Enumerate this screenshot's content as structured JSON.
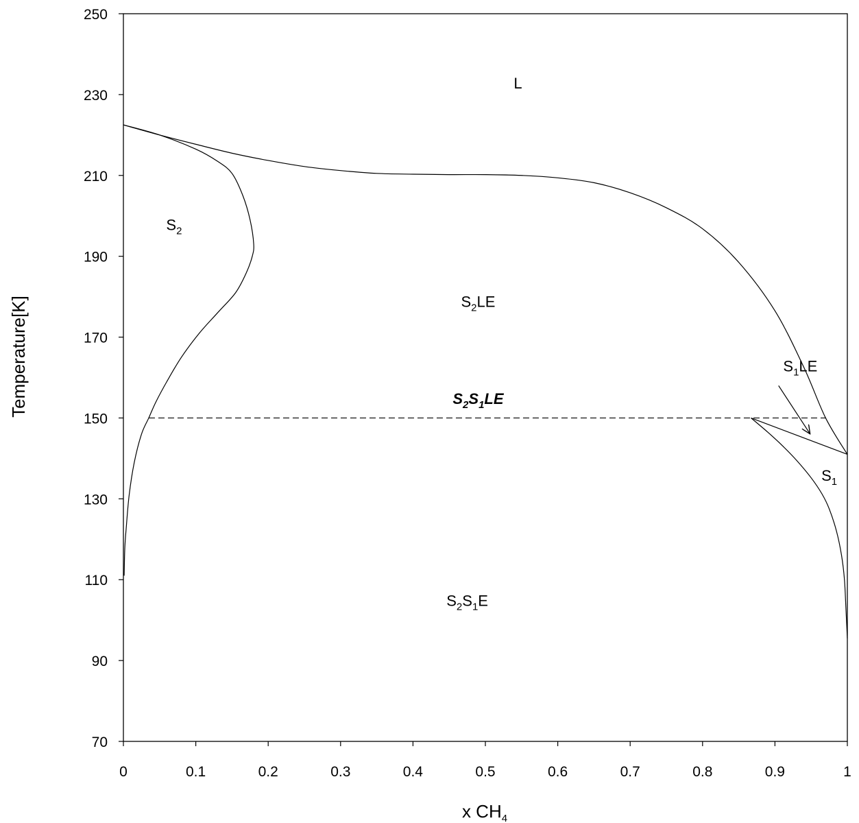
{
  "chart_data": {
    "type": "line",
    "title": "",
    "xlabel": "x CH",
    "xlabel_sub": "4",
    "ylabel": "Temperature[K]",
    "xlim": [
      0,
      1
    ],
    "ylim": [
      70,
      250
    ],
    "x_ticks": [
      "0",
      "0.1",
      "0.2",
      "0.3",
      "0.4",
      "0.5",
      "0.6",
      "0.7",
      "0.8",
      "0.9",
      "1"
    ],
    "y_ticks": [
      "70",
      "90",
      "110",
      "130",
      "150",
      "170",
      "190",
      "210",
      "230",
      "250"
    ],
    "grid": false,
    "legend": "none",
    "series": [
      {
        "id": "liquidus",
        "style": "solid",
        "points": [
          [
            0,
            222.5
          ],
          [
            0.05,
            220
          ],
          [
            0.1,
            217.7
          ],
          [
            0.15,
            215.5
          ],
          [
            0.2,
            213.7
          ],
          [
            0.25,
            212.2
          ],
          [
            0.3,
            211.2
          ],
          [
            0.35,
            210.5
          ],
          [
            0.4,
            210.3
          ],
          [
            0.45,
            210.2
          ],
          [
            0.5,
            210.2
          ],
          [
            0.55,
            210.0
          ],
          [
            0.6,
            209.4
          ],
          [
            0.65,
            208.2
          ],
          [
            0.7,
            205.7
          ],
          [
            0.75,
            202.0
          ],
          [
            0.8,
            196.8
          ],
          [
            0.85,
            188.5
          ],
          [
            0.9,
            176.5
          ],
          [
            0.94,
            162.5
          ],
          [
            0.97,
            150
          ],
          [
            1.0,
            141
          ]
        ]
      },
      {
        "id": "S2-solidus",
        "style": "solid",
        "points": [
          [
            0,
            222.5
          ],
          [
            0.05,
            220
          ],
          [
            0.1,
            216.5
          ],
          [
            0.13,
            213.5
          ],
          [
            0.15,
            210.5
          ],
          [
            0.165,
            205
          ],
          [
            0.175,
            199
          ],
          [
            0.18,
            193
          ],
          [
            0.178,
            190
          ],
          [
            0.17,
            186
          ],
          [
            0.155,
            181
          ],
          [
            0.13,
            176
          ],
          [
            0.105,
            171
          ],
          [
            0.08,
            165
          ],
          [
            0.06,
            159
          ],
          [
            0.045,
            154
          ],
          [
            0.035,
            150
          ],
          [
            0.025,
            146
          ],
          [
            0.015,
            139
          ],
          [
            0.008,
            131
          ],
          [
            0.004,
            123
          ],
          [
            0.002,
            118
          ],
          [
            0.001,
            111
          ]
        ]
      },
      {
        "id": "S1-solvus",
        "style": "solid",
        "points": [
          [
            0.867,
            150
          ],
          [
            0.89,
            146.5
          ],
          [
            0.91,
            143.2
          ],
          [
            0.93,
            139.5
          ],
          [
            0.95,
            135.2
          ],
          [
            0.965,
            131.2
          ],
          [
            0.975,
            127.5
          ],
          [
            0.985,
            122
          ],
          [
            0.992,
            116
          ],
          [
            0.996,
            110
          ],
          [
            0.998,
            103
          ],
          [
            1.0,
            95.5
          ]
        ]
      },
      {
        "id": "S1-solidus",
        "style": "solid",
        "points": [
          [
            0.867,
            150
          ],
          [
            1.0,
            141
          ]
        ]
      },
      {
        "id": "eutectic-line",
        "style": "dashed",
        "points": [
          [
            0.035,
            150
          ],
          [
            0.97,
            150
          ]
        ]
      }
    ],
    "annotations": [
      {
        "main": "L",
        "sub": "",
        "rest": "",
        "x": 0.545,
        "y": 231.5,
        "italic": false
      },
      {
        "main": "S",
        "sub": "2",
        "rest": "",
        "x": 0.07,
        "y": 196.5,
        "italic": false
      },
      {
        "main": "S",
        "sub": "2",
        "rest": "LE",
        "x": 0.49,
        "y": 177.5,
        "italic": false
      },
      {
        "main": "S",
        "sub": "2",
        "rest": "",
        "sub2main": "S",
        "sub2": "1",
        "rest2": "LE",
        "x": 0.49,
        "y": 153.5,
        "italic": true
      },
      {
        "main": "S",
        "sub": "1",
        "rest": "LE",
        "x": 0.935,
        "y": 161.5,
        "italic": false
      },
      {
        "main": "S",
        "sub": "1",
        "rest": "",
        "x": 0.975,
        "y": 134.5,
        "italic": false
      },
      {
        "main": "S",
        "sub": "2",
        "rest": "",
        "sub2main": "S",
        "sub2": "1",
        "rest2": "E",
        "x": 0.475,
        "y": 103.5,
        "italic": false
      }
    ],
    "arrow": {
      "from": [
        0.905,
        158
      ],
      "to": [
        0.948,
        146.2
      ]
    }
  }
}
